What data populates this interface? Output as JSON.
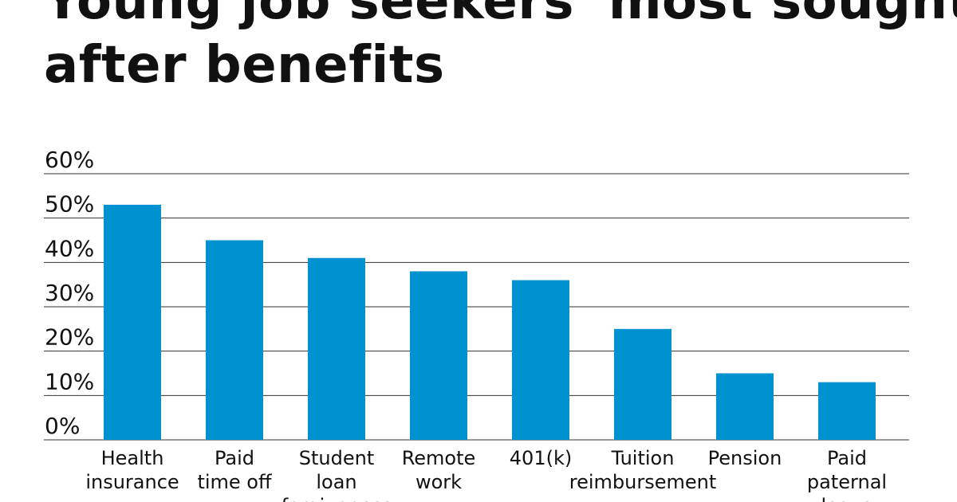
{
  "header": {
    "title_line1": "Young job seekers' most sought-",
    "title_line2": "after benefits"
  },
  "chart_data": {
    "type": "bar",
    "categories": [
      [
        "Health",
        "insurance"
      ],
      [
        "Paid",
        "time off"
      ],
      [
        "Student",
        "loan",
        "forgiveness"
      ],
      [
        "Remote",
        "work"
      ],
      [
        "401(k)"
      ],
      [
        "Tuition",
        "reimbursement"
      ],
      [
        "Pension"
      ],
      [
        "Paid",
        "paternal",
        "leave"
      ]
    ],
    "values": [
      53,
      45,
      41,
      38,
      36,
      25,
      15,
      13
    ],
    "ylim": [
      0,
      60
    ],
    "yticks": [
      0,
      10,
      20,
      30,
      40,
      50,
      60
    ],
    "ytick_labels": [
      "0%",
      "10%",
      "20%",
      "30%",
      "40%",
      "50%",
      "60%"
    ],
    "bar_color": "#0092d0",
    "grid": true,
    "xlabel": "",
    "ylabel": ""
  }
}
